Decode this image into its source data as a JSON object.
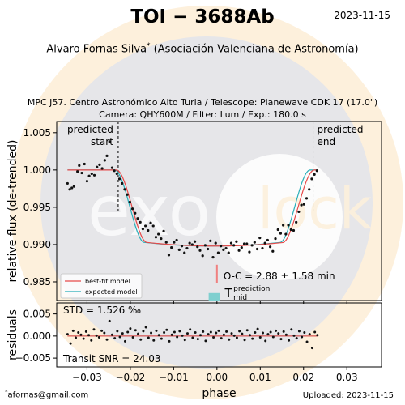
{
  "header": {
    "title": "TOI − 3688Ab",
    "date": "2023-11-15",
    "author": "Alvaro Fornas Silva",
    "author_mark": "*",
    "affiliation": "(Asociación Valenciana de Astronomía)",
    "observation_line1": "MPC J57. Centro Astronómico Alto Turia / Telescope: Planewave CDK 17 (17.0\")",
    "observation_line2": "Camera: QHY600M / Filter: Lum / Exp.: 180.0 s"
  },
  "footer": {
    "email_mark": "*",
    "email": "afornas@gmail.com",
    "uploaded": "Uploaded: 2023-11-15"
  },
  "watermark": {
    "text_left": "exo",
    "text_right": "lock"
  },
  "colors": {
    "best_fit": "#e84a4a",
    "expected": "#27aeb8",
    "oc_marker": "#f08080",
    "prediction_box": "#7fcfcf",
    "points": "#111111",
    "residual_line": "#d03030"
  },
  "chart_data": [
    {
      "type": "scatter",
      "xlabel": "",
      "ylabel": "relative flux (de-trended)",
      "xlim": [
        -0.037,
        0.038
      ],
      "ylim": [
        0.9825,
        1.0065
      ],
      "x_ticks": [
        -0.03,
        -0.02,
        -0.01,
        0.0,
        0.01,
        0.02,
        0.03
      ],
      "y_ticks": [
        0.985,
        0.99,
        0.995,
        1.0,
        1.005
      ],
      "y_tick_labels": [
        "0.985",
        "0.990",
        "0.995",
        "1.000",
        "1.005"
      ],
      "predicted_start": {
        "x": -0.0228,
        "label_line1": "predicted",
        "label_line2": "start"
      },
      "predicted_end": {
        "x": 0.0222,
        "label_line1": "predicted",
        "label_line2": "end"
      },
      "legend": {
        "position": "bottom-left",
        "entries": [
          "best-fit model",
          "expected model"
        ]
      },
      "oc_label": "O-C = 2.88 ± 1.58 min",
      "prediction_mid": {
        "x": -0.0006,
        "label_main": "T",
        "label_sup": "prediction",
        "label_sub": "mid"
      },
      "oc_marker_x": 0.0,
      "series": [
        {
          "name": "best-fit model",
          "transit": {
            "center": 0.0,
            "ingress_start": -0.0232,
            "ingress_end": -0.0162,
            "egress_start": 0.0152,
            "egress_end": 0.0225,
            "baseline": 1.0,
            "depth": 0.0102
          },
          "x_range": [
            -0.0345,
            0.0232
          ]
        },
        {
          "name": "expected model",
          "transit": {
            "center": -0.0006,
            "ingress_start": -0.0236,
            "ingress_end": -0.0168,
            "egress_start": 0.0146,
            "egress_end": 0.0215,
            "baseline": 1.0,
            "depth": 0.0102
          },
          "x_range": [
            -0.0345,
            0.0232
          ]
        }
      ],
      "points": [
        [
          -0.0345,
          0.9982
        ],
        [
          -0.034,
          0.9974
        ],
        [
          -0.0335,
          0.9976
        ],
        [
          -0.033,
          0.9978
        ],
        [
          -0.0322,
          0.9998
        ],
        [
          -0.0318,
          1.0006
        ],
        [
          -0.0312,
          0.9996
        ],
        [
          -0.0306,
          1.0008
        ],
        [
          -0.03,
          0.9985
        ],
        [
          -0.0295,
          0.9992
        ],
        [
          -0.0289,
          0.9995
        ],
        [
          -0.0283,
          0.9993
        ],
        [
          -0.0277,
          1.0004
        ],
        [
          -0.0271,
          1.0007
        ],
        [
          -0.0265,
          1.0002
        ],
        [
          -0.0259,
          1.0013
        ],
        [
          -0.0254,
          1.0019
        ],
        [
          -0.0248,
          1.0038
        ],
        [
          -0.0242,
          1.0003
        ],
        [
          -0.0237,
          0.9999
        ],
        [
          -0.0231,
          0.9995
        ],
        [
          -0.0225,
          0.9988
        ],
        [
          -0.0219,
          0.9982
        ],
        [
          -0.0213,
          0.9974
        ],
        [
          -0.0207,
          0.9967
        ],
        [
          -0.0201,
          0.9957
        ],
        [
          -0.0195,
          0.9948
        ],
        [
          -0.0189,
          0.9942
        ],
        [
          -0.0183,
          0.9935
        ],
        [
          -0.0177,
          0.993
        ],
        [
          -0.0171,
          0.9921
        ],
        [
          -0.0165,
          0.9925
        ],
        [
          -0.0159,
          0.9919
        ],
        [
          -0.0153,
          0.9929
        ],
        [
          -0.0147,
          0.9925
        ],
        [
          -0.0141,
          0.991
        ],
        [
          -0.0135,
          0.9914
        ],
        [
          -0.0129,
          0.9908
        ],
        [
          -0.0123,
          0.9918
        ],
        [
          -0.0117,
          0.9903
        ],
        [
          -0.0111,
          0.9886
        ],
        [
          -0.0105,
          0.9896
        ],
        [
          -0.0099,
          0.9903
        ],
        [
          -0.0093,
          0.9906
        ],
        [
          -0.0087,
          0.9893
        ],
        [
          -0.0081,
          0.9898
        ],
        [
          -0.0075,
          0.9889
        ],
        [
          -0.0069,
          0.9895
        ],
        [
          -0.0063,
          0.9902
        ],
        [
          -0.0057,
          0.99
        ],
        [
          -0.0051,
          0.9904
        ],
        [
          -0.0045,
          0.9897
        ],
        [
          -0.0039,
          0.9892
        ],
        [
          -0.0033,
          0.9885
        ],
        [
          -0.0027,
          0.9899
        ],
        [
          -0.0021,
          0.9894
        ],
        [
          -0.0015,
          0.9905
        ],
        [
          -0.0009,
          0.9883
        ],
        [
          -0.0003,
          0.9902
        ],
        [
          0.0003,
          0.9889
        ],
        [
          0.0009,
          0.9898
        ],
        [
          0.0015,
          0.9893
        ],
        [
          0.0021,
          0.9895
        ],
        [
          0.0027,
          0.9889
        ],
        [
          0.0033,
          0.9902
        ],
        [
          0.0039,
          0.9899
        ],
        [
          0.0045,
          0.9904
        ],
        [
          0.0051,
          0.9892
        ],
        [
          0.0057,
          0.9896
        ],
        [
          0.0063,
          0.9901
        ],
        [
          0.0069,
          0.9901
        ],
        [
          0.0075,
          0.989
        ],
        [
          0.0081,
          0.9899
        ],
        [
          0.0087,
          0.9903
        ],
        [
          0.0093,
          0.9894
        ],
        [
          0.0099,
          0.9909
        ],
        [
          0.0105,
          0.9895
        ],
        [
          0.0111,
          0.9902
        ],
        [
          0.0117,
          0.9906
        ],
        [
          0.0123,
          0.9897
        ],
        [
          0.0129,
          0.9891
        ],
        [
          0.0135,
          0.9908
        ],
        [
          0.0141,
          0.992
        ],
        [
          0.0147,
          0.9915
        ],
        [
          0.0153,
          0.9926
        ],
        [
          0.0159,
          0.9914
        ],
        [
          0.0165,
          0.9926
        ],
        [
          0.0171,
          0.992
        ],
        [
          0.0177,
          0.9919
        ],
        [
          0.0183,
          0.993
        ],
        [
          0.0189,
          0.9944
        ],
        [
          0.0195,
          0.9953
        ],
        [
          0.0201,
          0.9954
        ],
        [
          0.0207,
          0.9962
        ],
        [
          0.0213,
          0.9974
        ],
        [
          0.0219,
          0.9988
        ],
        [
          0.0225,
          0.9994
        ],
        [
          0.0231,
          0.9999
        ]
      ]
    },
    {
      "type": "scatter",
      "xlabel": "phase",
      "ylabel": "residuals",
      "xlim": [
        -0.037,
        0.038
      ],
      "ylim": [
        -0.007,
        0.0075
      ],
      "x_ticks": [
        -0.03,
        -0.02,
        -0.01,
        0.0,
        0.01,
        0.02,
        0.03
      ],
      "x_tick_labels": [
        "−0.03",
        "−0.02",
        "−0.01",
        "0.00",
        "0.01",
        "0.02",
        "0.03"
      ],
      "y_ticks": [
        -0.005,
        0.0,
        0.005
      ],
      "y_tick_labels": [
        "−0.005",
        "0.000",
        "0.005"
      ],
      "std_label": "STD = 1.526 ‰",
      "snr_label": "Transit SNR = 24.03",
      "points": [
        [
          -0.0345,
          0.0004
        ],
        [
          -0.0338,
          -0.0017
        ],
        [
          -0.0332,
          0.0012
        ],
        [
          -0.0326,
          -0.0004
        ],
        [
          -0.032,
          0.0008
        ],
        [
          -0.0314,
          0.0003
        ],
        [
          -0.0308,
          -0.0006
        ],
        [
          -0.0302,
          0.001
        ],
        [
          -0.0296,
          0.0002
        ],
        [
          -0.029,
          -0.001
        ],
        [
          -0.0284,
          0.0015
        ],
        [
          -0.0278,
          0.0001
        ],
        [
          -0.0272,
          -0.0003
        ],
        [
          -0.0266,
          0.0012
        ],
        [
          -0.026,
          0.0007
        ],
        [
          -0.0254,
          -0.0008
        ],
        [
          -0.0248,
          0.0034
        ],
        [
          -0.0242,
          0.0003
        ],
        [
          -0.0236,
          -0.0005
        ],
        [
          -0.023,
          0.0011
        ],
        [
          -0.0224,
          -0.0002
        ],
        [
          -0.0218,
          0.0006
        ],
        [
          -0.0212,
          -0.0012
        ],
        [
          -0.0206,
          0.0009
        ],
        [
          -0.02,
          0.0017
        ],
        [
          -0.0194,
          -0.0003
        ],
        [
          -0.0188,
          0.0013
        ],
        [
          -0.0182,
          0.0005
        ],
        [
          -0.0176,
          -0.0008
        ],
        [
          -0.017,
          0.0011
        ],
        [
          -0.0164,
          0.002
        ],
        [
          -0.0158,
          -0.0004
        ],
        [
          -0.0152,
          0.0007
        ],
        [
          -0.0146,
          -0.001
        ],
        [
          -0.014,
          0.0012
        ],
        [
          -0.0134,
          0.0002
        ],
        [
          -0.0128,
          -0.0006
        ],
        [
          -0.0122,
          0.0008
        ],
        [
          -0.0116,
          0.0014
        ],
        [
          -0.011,
          -0.0012
        ],
        [
          -0.0104,
          0.0003
        ],
        [
          -0.0098,
          0.0009
        ],
        [
          -0.0092,
          -0.0002
        ],
        [
          -0.0086,
          0.0011
        ],
        [
          -0.008,
          0.0001
        ],
        [
          -0.0074,
          -0.0009
        ],
        [
          -0.0068,
          0.0006
        ],
        [
          -0.0062,
          0.0015
        ],
        [
          -0.0056,
          -0.0004
        ],
        [
          -0.005,
          0.0008
        ],
        [
          -0.0044,
          -0.0007
        ],
        [
          -0.0038,
          0.0002
        ],
        [
          -0.0032,
          0.001
        ],
        [
          -0.0026,
          -0.0011
        ],
        [
          -0.002,
          0.0004
        ],
        [
          -0.0014,
          0.0009
        ],
        [
          -0.0008,
          -0.0003
        ],
        [
          -0.0002,
          0.0007
        ],
        [
          0.0004,
          0.0012
        ],
        [
          0.001,
          -0.0005
        ],
        [
          0.0016,
          0.0003
        ],
        [
          0.0022,
          0.001
        ],
        [
          0.0028,
          -0.0008
        ],
        [
          0.0034,
          0.0006
        ],
        [
          0.004,
          0.0001
        ],
        [
          0.0046,
          -0.0004
        ],
        [
          0.0052,
          0.0011
        ],
        [
          0.0058,
          0.0005
        ],
        [
          0.0064,
          -0.0009
        ],
        [
          0.007,
          0.0013
        ],
        [
          0.0076,
          0.0002
        ],
        [
          0.0082,
          -0.0006
        ],
        [
          0.0088,
          0.0008
        ],
        [
          0.0094,
          0.0016
        ],
        [
          0.01,
          -0.0003
        ],
        [
          0.0106,
          0.0007
        ],
        [
          0.0112,
          -0.0011
        ],
        [
          0.0118,
          0.0004
        ],
        [
          0.0124,
          0.0009
        ],
        [
          0.013,
          -0.0002
        ],
        [
          0.0136,
          0.0012
        ],
        [
          0.0142,
          0.0006
        ],
        [
          0.0148,
          -0.0007
        ],
        [
          0.0154,
          0.001
        ],
        [
          0.016,
          0.0003
        ],
        [
          0.0166,
          -0.001
        ],
        [
          0.0172,
          0.0015
        ],
        [
          0.0178,
          0.0001
        ],
        [
          0.0184,
          -0.0005
        ],
        [
          0.019,
          0.0011
        ],
        [
          0.0196,
          -0.0002
        ],
        [
          0.0202,
          0.0008
        ],
        [
          0.0208,
          -0.0013
        ],
        [
          0.0214,
          0.0004
        ],
        [
          0.022,
          -0.0027
        ],
        [
          0.0226,
          0.0009
        ],
        [
          0.0232,
          0.0002
        ]
      ]
    }
  ]
}
